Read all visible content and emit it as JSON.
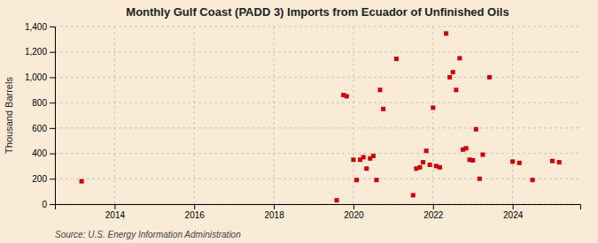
{
  "chart_data": {
    "type": "scatter",
    "title": "Monthly Gulf Coast (PADD 3) Imports from Ecuador of Unfinished Oils",
    "ylabel": "Thousand Barrels",
    "annotations": [
      "Source: U.S. Energy Information Administration"
    ],
    "x": [
      2013.17,
      2019.58,
      2019.75,
      2019.83,
      2020.0,
      2020.08,
      2020.17,
      2020.25,
      2020.33,
      2020.42,
      2020.5,
      2020.58,
      2020.67,
      2020.75,
      2021.08,
      2021.5,
      2021.58,
      2021.67,
      2021.75,
      2021.83,
      2021.92,
      2022.0,
      2022.08,
      2022.17,
      2022.33,
      2022.42,
      2022.5,
      2022.58,
      2022.67,
      2022.75,
      2022.83,
      2022.92,
      2023.0,
      2023.08,
      2023.17,
      2023.25,
      2023.42,
      2024.0,
      2024.17,
      2024.5,
      2025.0,
      2025.17
    ],
    "values": [
      180,
      30,
      860,
      850,
      350,
      190,
      350,
      370,
      280,
      360,
      380,
      190,
      900,
      750,
      1145,
      70,
      280,
      290,
      330,
      420,
      310,
      760,
      300,
      290,
      1345,
      1000,
      1040,
      900,
      1150,
      430,
      440,
      350,
      345,
      590,
      200,
      390,
      1000,
      335,
      325,
      190,
      340,
      330
    ],
    "color": "#cc0000",
    "marker": "square",
    "xlim": [
      2012.5,
      2025.7
    ],
    "ylim": [
      0,
      1400
    ],
    "xticks": [
      2014,
      2016,
      2018,
      2020,
      2022,
      2024
    ],
    "yticks": [
      0,
      200,
      400,
      600,
      800,
      {
        "value": 1000,
        "label": "1,000"
      },
      {
        "value": 1200,
        "label": "1,200"
      },
      {
        "value": 1400,
        "label": "1,400"
      }
    ],
    "grid": true
  }
}
